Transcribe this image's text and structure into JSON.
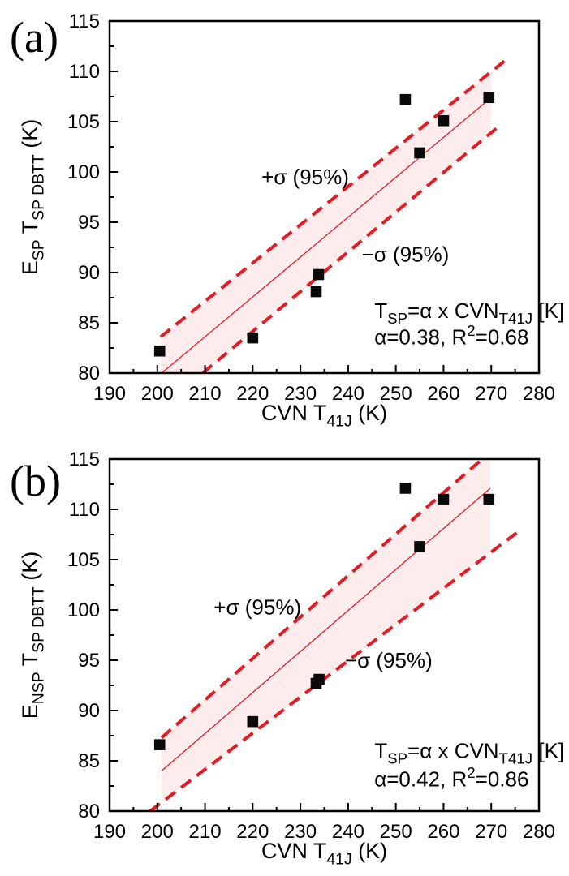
{
  "figure": {
    "background": "#ffffff",
    "accent_red": "#e41b23",
    "band_fill": "#fdecec",
    "marker_color": "#0a0a0a",
    "frame_color": "#000000"
  },
  "chart_data": [
    {
      "panel_label": "(a)",
      "type": "scatter",
      "xlabel": "CVN T_{41J} (K)",
      "ylabel": "E_{SP} T_{SP DBTT} (K)",
      "xlim": [
        190,
        280
      ],
      "ylim": [
        80,
        115
      ],
      "x_major_ticks": [
        190,
        200,
        210,
        220,
        230,
        240,
        250,
        260,
        270,
        280
      ],
      "y_major_ticks": [
        80,
        85,
        90,
        95,
        100,
        105,
        110,
        115
      ],
      "x_minor_step": 5,
      "y_minor_step": 2.5,
      "grid": false,
      "legend": null,
      "points": [
        [
          200.5,
          82.2
        ],
        [
          220,
          83.5
        ],
        [
          233.3,
          88.1
        ],
        [
          233.8,
          89.8
        ],
        [
          252,
          107.2
        ],
        [
          255,
          101.9
        ],
        [
          260,
          105.1
        ],
        [
          269.5,
          107.4
        ]
      ],
      "fit_line": [
        [
          200.9,
          80
        ],
        [
          270,
          107.4
        ]
      ],
      "upper_band_line": [
        [
          200.7,
          83.6
        ],
        [
          273.5,
          111.3
        ]
      ],
      "lower_band_line": [
        [
          209.5,
          80
        ],
        [
          272,
          104.7
        ]
      ],
      "band_polygon": [
        [
          200.7,
          83.6
        ],
        [
          270,
          110.0
        ],
        [
          270,
          103.9
        ],
        [
          209.5,
          80
        ],
        [
          200.7,
          80
        ]
      ],
      "annotations": [
        {
          "text": "+σ (95%)",
          "x": 231,
          "y": 99.5,
          "anchor": "middle"
        },
        {
          "text": "−σ (95%)",
          "x": 252,
          "y": 91.8,
          "anchor": "middle"
        },
        {
          "text": "T_{SP}=α x CVN_{T41J} [K]",
          "x": 245.5,
          "y": 86.2,
          "anchor": "start"
        },
        {
          "text": "α=0.38, R^{2}=0.68",
          "x": 245.5,
          "y": 83.6,
          "anchor": "start"
        }
      ]
    },
    {
      "panel_label": "(b)",
      "type": "scatter",
      "xlabel": "CVN T_{41J} (K)",
      "ylabel": "E_{NSP} T_{SP DBTT} (K)",
      "xlim": [
        190,
        280
      ],
      "ylim": [
        80,
        115
      ],
      "x_major_ticks": [
        190,
        200,
        210,
        220,
        230,
        240,
        250,
        260,
        270,
        280
      ],
      "y_major_ticks": [
        80,
        85,
        90,
        95,
        100,
        105,
        110,
        115
      ],
      "x_minor_step": 5,
      "y_minor_step": 2.5,
      "grid": false,
      "legend": null,
      "points": [
        [
          200.5,
          86.6
        ],
        [
          220,
          88.9
        ],
        [
          233.3,
          92.7
        ],
        [
          233.9,
          93.1
        ],
        [
          252,
          112.1
        ],
        [
          255,
          106.3
        ],
        [
          260,
          111.0
        ],
        [
          269.5,
          111.0
        ]
      ],
      "fit_line": [
        [
          200.9,
          84.0
        ],
        [
          269.8,
          112.1
        ]
      ],
      "upper_band_line": [
        [
          200.9,
          87.3
        ],
        [
          268.1,
          115
        ]
      ],
      "lower_band_line": [
        [
          198.5,
          80
        ],
        [
          276.5,
          108.1
        ]
      ],
      "band_polygon": [
        [
          200.9,
          87.3
        ],
        [
          268.1,
          115
        ],
        [
          269.8,
          115
        ],
        [
          269.8,
          105.7
        ],
        [
          200.9,
          80.9
        ]
      ],
      "annotations": [
        {
          "text": "+σ (95%)",
          "x": 221,
          "y": 100.3,
          "anchor": "middle"
        },
        {
          "text": "−σ (95%)",
          "x": 248.5,
          "y": 95.0,
          "anchor": "middle"
        },
        {
          "text": "T_{SP}=α x CVN_{T41J} [K]",
          "x": 245.5,
          "y": 86.0,
          "anchor": "start"
        },
        {
          "text": "α=0.42, R^{2}=0.86",
          "x": 245.5,
          "y": 83.2,
          "anchor": "start"
        }
      ]
    }
  ]
}
